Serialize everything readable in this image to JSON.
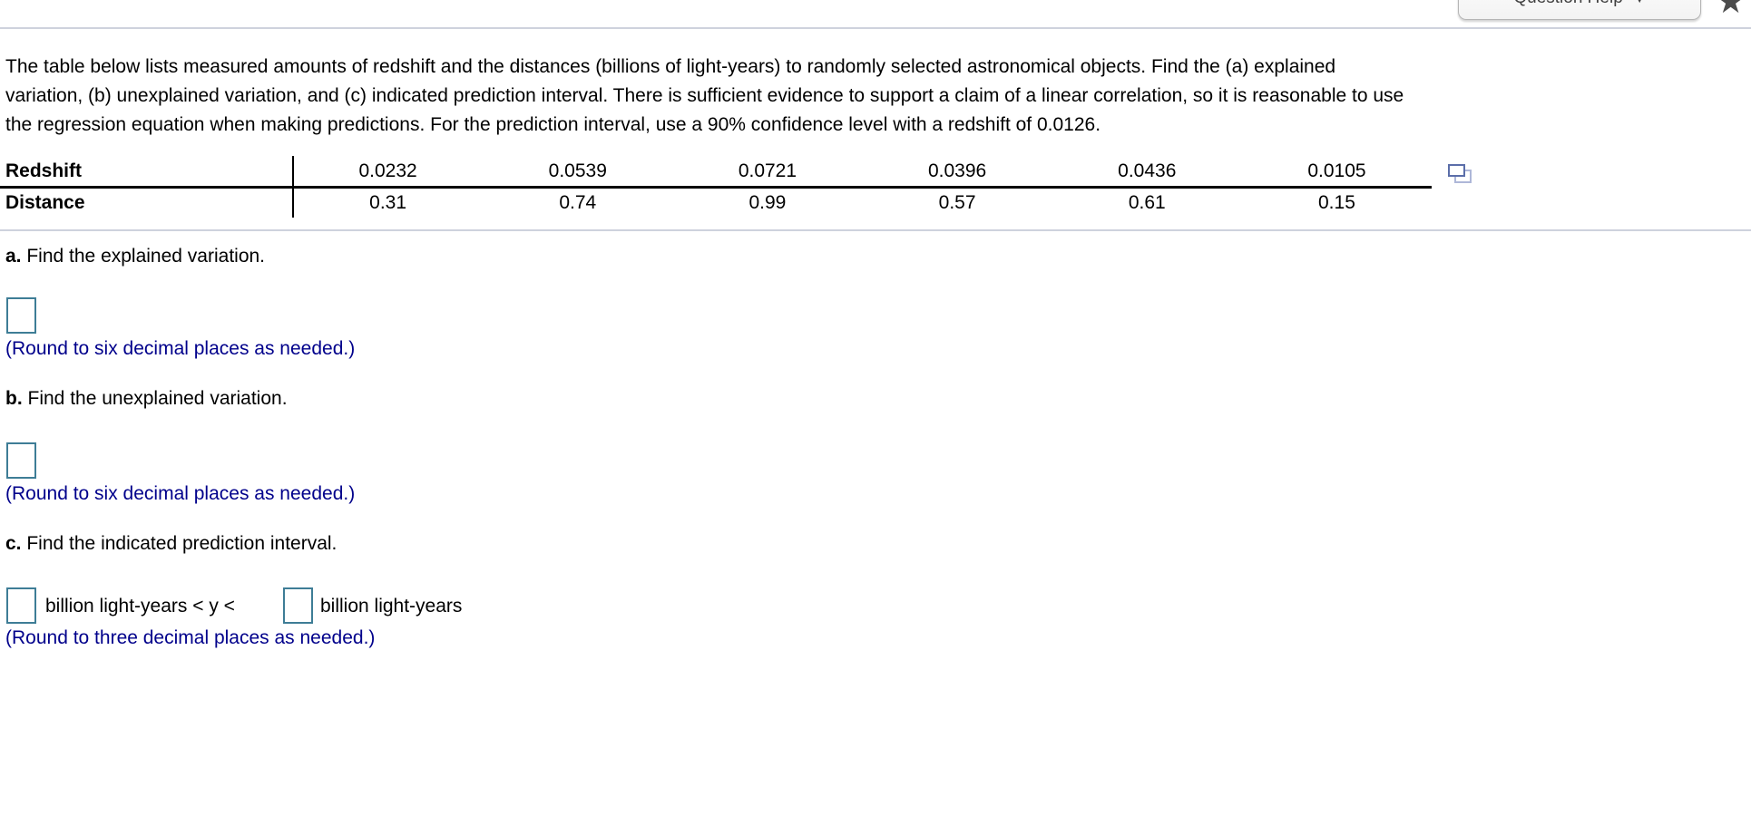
{
  "header": {
    "question_help_label": "Question Help",
    "question_help_caret": "▼",
    "star_icon_glyph": "★"
  },
  "problem": {
    "line1": "The table below lists measured amounts of redshift and the distances (billions of light-years) to randomly selected astronomical objects. Find the (a) explained",
    "line2": "variation, (b) unexplained variation, and (c) indicated prediction interval. There is sufficient evidence to support a claim of a linear correlation, so it is reasonable to use",
    "line3": "the regression equation when making predictions. For the prediction interval, use a 90% confidence level with a redshift of 0.0126."
  },
  "table": {
    "rows": [
      {
        "label": "Redshift",
        "values": [
          "0.0232",
          "0.0539",
          "0.0721",
          "0.0396",
          "0.0436",
          "0.0105"
        ]
      },
      {
        "label": "Distance",
        "values": [
          "0.31",
          "0.74",
          "0.99",
          "0.57",
          "0.61",
          "0.15"
        ]
      }
    ],
    "icon": "copy-table-data-icon"
  },
  "sections": {
    "a": {
      "prefix": "a.",
      "title": " Find the explained variation.",
      "note": "(Round to six decimal places as needed.)"
    },
    "b": {
      "prefix": "b.",
      "title": " Find the unexplained variation.",
      "note": "(Round to six decimal places as needed.)"
    },
    "c": {
      "prefix": "c.",
      "title": " Find the indicated prediction interval.",
      "between_text": "billion light-years < y <",
      "after_text": "billion light-years",
      "note": "(Round to three decimal places as needed.)"
    }
  },
  "inputs": {
    "a_value": "",
    "b_value": "",
    "c_lower_value": "",
    "c_upper_value": ""
  },
  "colors": {
    "answer_box_border": "#3e7d96",
    "instruction_blue": "#00008B",
    "divider_gray": "#ced2dd",
    "icon_front_blue": "#5b6ea9",
    "icon_back_blue": "#aeb7d8"
  }
}
